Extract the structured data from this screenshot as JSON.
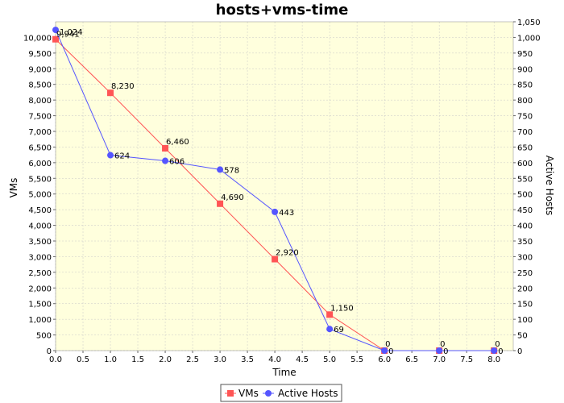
{
  "chart_data": {
    "type": "line",
    "title": "hosts+vms-time",
    "xlabel": "Time",
    "ylabel_left": "VMs",
    "ylabel_right": "Active Hosts",
    "xlim": [
      0,
      8.35
    ],
    "ylim_left": [
      0,
      10500
    ],
    "ylim_right": [
      0,
      1050
    ],
    "x_ticks": [
      "0.0",
      "0.5",
      "1.0",
      "1.5",
      "2.0",
      "2.5",
      "3.0",
      "3.5",
      "4.0",
      "4.5",
      "5.0",
      "5.5",
      "6.0",
      "6.5",
      "7.0",
      "7.5",
      "8.0"
    ],
    "y_left_ticks": [
      "0",
      "500",
      "1,000",
      "1,500",
      "2,000",
      "2,500",
      "3,000",
      "3,500",
      "4,000",
      "4,500",
      "5,000",
      "5,500",
      "6,000",
      "6,500",
      "7,000",
      "7,500",
      "8,000",
      "8,500",
      "9,000",
      "9,500",
      "10,000"
    ],
    "y_right_ticks": [
      "0",
      "50",
      "100",
      "150",
      "200",
      "250",
      "300",
      "350",
      "400",
      "450",
      "500",
      "550",
      "600",
      "650",
      "700",
      "750",
      "800",
      "850",
      "900",
      "950",
      "1,000",
      "1,050"
    ],
    "grid": true,
    "legend_position": "bottom",
    "colors": {
      "plot_bg": "#ffffdd",
      "grid": "#c8c8c8",
      "vms": "#ff5555",
      "hosts": "#5555ff"
    },
    "series": [
      {
        "name": "VMs",
        "axis": "left",
        "marker": "square",
        "x": [
          0,
          1,
          2,
          3,
          4,
          5,
          6,
          7,
          8
        ],
        "values": [
          9941,
          8230,
          6460,
          4690,
          2920,
          1150,
          0,
          0,
          0
        ],
        "labels": [
          "9,941",
          "8,230",
          "6,460",
          "4,690",
          "2,920",
          "1,150",
          "0",
          "0",
          "0"
        ]
      },
      {
        "name": "Active Hosts",
        "axis": "right",
        "marker": "circle",
        "x": [
          0,
          1,
          2,
          3,
          4,
          5,
          6,
          7,
          8
        ],
        "values": [
          1024,
          624,
          606,
          578,
          443,
          69,
          0,
          0,
          0
        ],
        "labels": [
          "1,024",
          "624",
          "606",
          "578",
          "443",
          "69",
          "0",
          "0",
          "0"
        ]
      }
    ]
  }
}
